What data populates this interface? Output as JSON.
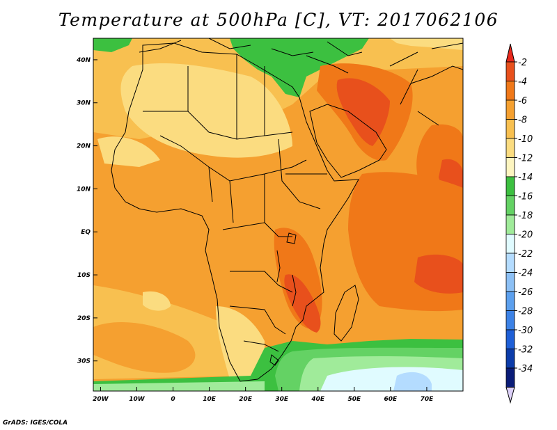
{
  "title": "Temperature at 500hPa [C], VT: 2017062106",
  "footer": "GrADS: IGES/COLA",
  "map": {
    "lon_range": [
      -22,
      80
    ],
    "lat_range": [
      -37,
      45
    ],
    "lat_ticks": [
      {
        "value": 40,
        "label": "40N"
      },
      {
        "value": 30,
        "label": "30N"
      },
      {
        "value": 20,
        "label": "20N"
      },
      {
        "value": 10,
        "label": "10N"
      },
      {
        "value": 0,
        "label": "EQ"
      },
      {
        "value": -10,
        "label": "10S"
      },
      {
        "value": -20,
        "label": "20S"
      },
      {
        "value": -30,
        "label": "30S"
      }
    ],
    "lon_ticks": [
      {
        "value": -20,
        "label": "20W"
      },
      {
        "value": -10,
        "label": "10W"
      },
      {
        "value": 0,
        "label": "0"
      },
      {
        "value": 10,
        "label": "10E"
      },
      {
        "value": 20,
        "label": "20E"
      },
      {
        "value": 30,
        "label": "30E"
      },
      {
        "value": 40,
        "label": "40E"
      },
      {
        "value": 50,
        "label": "50E"
      },
      {
        "value": 60,
        "label": "60E"
      },
      {
        "value": 70,
        "label": "70E"
      }
    ]
  },
  "colorbar": {
    "labels": [
      "-2",
      "-4",
      "-6",
      "-8",
      "-10",
      "-12",
      "-14",
      "-16",
      "-18",
      "-20",
      "-22",
      "-24",
      "-26",
      "-28",
      "-30",
      "-32",
      "-34"
    ],
    "colors": [
      "#e8501c",
      "#f07818",
      "#f5a030",
      "#f8c050",
      "#fbdc80",
      "#fdf5c0",
      "#3cc040",
      "#64d264",
      "#a0eb9a",
      "#e0fbff",
      "#b4dcff",
      "#8cc0f5",
      "#5ca0ee",
      "#3c82e6",
      "#1e5fd7",
      "#0c3caa",
      "#0a1c78"
    ],
    "top_arrow_color": "#e8281c",
    "bottom_arrow_color": "#dcd0f8"
  }
}
